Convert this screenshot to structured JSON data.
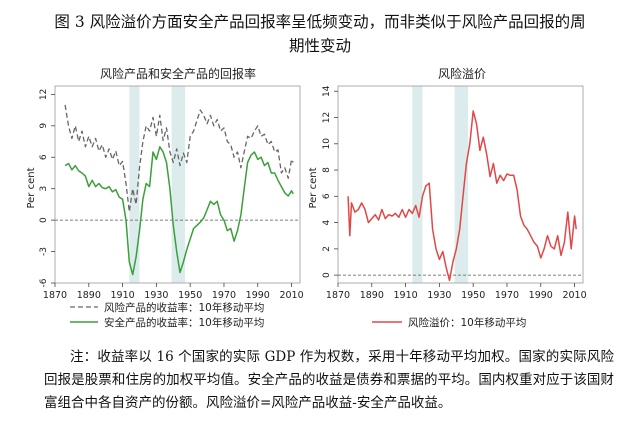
{
  "figure": {
    "title_line1": "图 3 风险溢价方面安全产品回报率呈低频变动，而非类似于风险产品回报的周",
    "title_line2": "期性变动"
  },
  "note": "注：收益率以 16 个国家的实际 GDP 作为权数，采用十年移动平均加权。国家的实际风险回报是股票和住房的加权平均值。安全产品的收益是债券和票据的平均。国内权重对应于该国财富组合中各自资产的份额。风险溢价=风险产品收益-安全产品收益。",
  "colors": {
    "risky": "#666666",
    "safe": "#3aa03a",
    "premium": "#e04848",
    "band": "#dcecec",
    "zero": "#555555"
  },
  "chart_data": [
    {
      "type": "line",
      "title": "风险产品和安全产品的回报率",
      "ylabel": "Per cent",
      "xlim": [
        1870,
        2015
      ],
      "ylim": [
        -6,
        12.8
      ],
      "x_ticks": [
        1870,
        1890,
        1910,
        1930,
        1950,
        1970,
        1990,
        2010
      ],
      "y_ticks": [
        -6,
        -3,
        0,
        3,
        6,
        9,
        12
      ],
      "zero_line": true,
      "shaded_periods": [
        [
          1914,
          1920
        ],
        [
          1939,
          1947
        ]
      ],
      "legend_position": "bottom",
      "series": [
        {
          "name": "风险产品的收益率：10年移动平均",
          "style": "dashed",
          "color": "#666666",
          "points": [
            [
              1876,
              11
            ],
            [
              1878,
              9
            ],
            [
              1880,
              7.8
            ],
            [
              1882,
              9
            ],
            [
              1884,
              7.5
            ],
            [
              1886,
              8.5
            ],
            [
              1888,
              7
            ],
            [
              1890,
              8
            ],
            [
              1892,
              7
            ],
            [
              1894,
              7.8
            ],
            [
              1896,
              6.6
            ],
            [
              1898,
              7.2
            ],
            [
              1900,
              6
            ],
            [
              1902,
              6.8
            ],
            [
              1904,
              5.8
            ],
            [
              1906,
              6.6
            ],
            [
              1908,
              5.2
            ],
            [
              1910,
              5.6
            ],
            [
              1912,
              3.5
            ],
            [
              1914,
              0.8
            ],
            [
              1916,
              3
            ],
            [
              1918,
              1.5
            ],
            [
              1920,
              5
            ],
            [
              1922,
              7.5
            ],
            [
              1924,
              9
            ],
            [
              1926,
              8.5
            ],
            [
              1928,
              9.8
            ],
            [
              1930,
              8
            ],
            [
              1932,
              10
            ],
            [
              1934,
              7.6
            ],
            [
              1936,
              8.8
            ],
            [
              1938,
              6.5
            ],
            [
              1940,
              5.5
            ],
            [
              1942,
              6.8
            ],
            [
              1944,
              5.2
            ],
            [
              1946,
              6.4
            ],
            [
              1948,
              5.5
            ],
            [
              1950,
              8
            ],
            [
              1952,
              8.5
            ],
            [
              1954,
              9.5
            ],
            [
              1956,
              10.5
            ],
            [
              1958,
              10
            ],
            [
              1960,
              9.2
            ],
            [
              1962,
              10
            ],
            [
              1964,
              9
            ],
            [
              1966,
              9.6
            ],
            [
              1968,
              8.5
            ],
            [
              1970,
              8.8
            ],
            [
              1972,
              7.5
            ],
            [
              1974,
              7.2
            ],
            [
              1976,
              6
            ],
            [
              1978,
              6.5
            ],
            [
              1980,
              5
            ],
            [
              1982,
              6.5
            ],
            [
              1984,
              8
            ],
            [
              1986,
              7.8
            ],
            [
              1988,
              8.5
            ],
            [
              1990,
              9
            ],
            [
              1992,
              8
            ],
            [
              1994,
              8.2
            ],
            [
              1996,
              7.2
            ],
            [
              1998,
              7.5
            ],
            [
              2000,
              6.5
            ],
            [
              2002,
              6.7
            ],
            [
              2004,
              4.5
            ],
            [
              2006,
              5
            ],
            [
              2008,
              4
            ],
            [
              2010,
              5.8
            ],
            [
              2011,
              5.5
            ]
          ]
        },
        {
          "name": "安全产品的收益率：10年移动平均",
          "style": "solid",
          "color": "#3aa03a",
          "points": [
            [
              1876,
              5.2
            ],
            [
              1878,
              5.4
            ],
            [
              1880,
              4.8
            ],
            [
              1882,
              5.2
            ],
            [
              1884,
              4.7
            ],
            [
              1886,
              4.5
            ],
            [
              1888,
              4.2
            ],
            [
              1890,
              3.2
            ],
            [
              1892,
              3.8
            ],
            [
              1894,
              3.2
            ],
            [
              1896,
              3.5
            ],
            [
              1898,
              3.1
            ],
            [
              1900,
              3
            ],
            [
              1902,
              3.2
            ],
            [
              1904,
              2.7
            ],
            [
              1906,
              2.9
            ],
            [
              1908,
              2.2
            ],
            [
              1910,
              2
            ],
            [
              1912,
              0
            ],
            [
              1914,
              -4
            ],
            [
              1916,
              -5.2
            ],
            [
              1918,
              -3.5
            ],
            [
              1920,
              -1
            ],
            [
              1922,
              2
            ],
            [
              1924,
              3.5
            ],
            [
              1926,
              3.2
            ],
            [
              1928,
              6.5
            ],
            [
              1930,
              5.8
            ],
            [
              1932,
              7
            ],
            [
              1934,
              6.5
            ],
            [
              1936,
              5.5
            ],
            [
              1938,
              3
            ],
            [
              1940,
              -0.5
            ],
            [
              1942,
              -3
            ],
            [
              1944,
              -5
            ],
            [
              1946,
              -4
            ],
            [
              1948,
              -2.8
            ],
            [
              1950,
              -1.8
            ],
            [
              1952,
              -0.8
            ],
            [
              1954,
              -0.5
            ],
            [
              1956,
              -0.2
            ],
            [
              1958,
              0.2
            ],
            [
              1960,
              1
            ],
            [
              1962,
              1.8
            ],
            [
              1964,
              1.5
            ],
            [
              1966,
              1.8
            ],
            [
              1968,
              0.5
            ],
            [
              1970,
              0
            ],
            [
              1972,
              -1
            ],
            [
              1974,
              -0.8
            ],
            [
              1976,
              -2
            ],
            [
              1978,
              -1
            ],
            [
              1980,
              0.5
            ],
            [
              1982,
              3
            ],
            [
              1984,
              5.5
            ],
            [
              1986,
              6.2
            ],
            [
              1988,
              6.5
            ],
            [
              1990,
              5.8
            ],
            [
              1992,
              6
            ],
            [
              1994,
              5.2
            ],
            [
              1996,
              5.5
            ],
            [
              1998,
              4.5
            ],
            [
              2000,
              4.5
            ],
            [
              2002,
              3.8
            ],
            [
              2004,
              3.2
            ],
            [
              2006,
              2.6
            ],
            [
              2008,
              2.3
            ],
            [
              2010,
              2.8
            ],
            [
              2011,
              2.5
            ]
          ]
        }
      ]
    },
    {
      "type": "line",
      "title": "风险溢价",
      "ylabel": "Per cent",
      "xlim": [
        1870,
        2015
      ],
      "ylim": [
        -0.6,
        14.4
      ],
      "x_ticks": [
        1870,
        1890,
        1910,
        1930,
        1950,
        1970,
        1990,
        2010
      ],
      "y_ticks": [
        0,
        2,
        4,
        6,
        8,
        10,
        12,
        14
      ],
      "zero_line": true,
      "shaded_periods": [
        [
          1914,
          1920
        ],
        [
          1939,
          1947
        ]
      ],
      "legend_position": "bottom",
      "series": [
        {
          "name": "风险溢价：10年移动平均",
          "style": "solid",
          "color": "#e04848",
          "points": [
            [
              1876,
              6
            ],
            [
              1877,
              3
            ],
            [
              1878,
              5.5
            ],
            [
              1880,
              4.8
            ],
            [
              1882,
              5
            ],
            [
              1884,
              5.5
            ],
            [
              1886,
              5
            ],
            [
              1888,
              4
            ],
            [
              1890,
              4.3
            ],
            [
              1892,
              4.6
            ],
            [
              1894,
              4.2
            ],
            [
              1896,
              5
            ],
            [
              1898,
              4.3
            ],
            [
              1900,
              4.6
            ],
            [
              1902,
              4.5
            ],
            [
              1904,
              4.7
            ],
            [
              1906,
              4.4
            ],
            [
              1908,
              5
            ],
            [
              1910,
              4.4
            ],
            [
              1912,
              5
            ],
            [
              1914,
              4.7
            ],
            [
              1916,
              5.3
            ],
            [
              1918,
              4.4
            ],
            [
              1920,
              6
            ],
            [
              1922,
              6.8
            ],
            [
              1924,
              7
            ],
            [
              1926,
              3.5
            ],
            [
              1928,
              2
            ],
            [
              1930,
              1.2
            ],
            [
              1932,
              1.8
            ],
            [
              1934,
              0.6
            ],
            [
              1936,
              -0.4
            ],
            [
              1938,
              1
            ],
            [
              1940,
              2
            ],
            [
              1942,
              3.5
            ],
            [
              1944,
              6
            ],
            [
              1946,
              8.5
            ],
            [
              1948,
              10
            ],
            [
              1950,
              12.5
            ],
            [
              1952,
              11.5
            ],
            [
              1954,
              9.5
            ],
            [
              1956,
              10.5
            ],
            [
              1958,
              9.2
            ],
            [
              1960,
              7.5
            ],
            [
              1962,
              8.5
            ],
            [
              1964,
              7
            ],
            [
              1966,
              7.6
            ],
            [
              1968,
              7.2
            ],
            [
              1970,
              7.7
            ],
            [
              1972,
              7.6
            ],
            [
              1974,
              7.6
            ],
            [
              1976,
              6.5
            ],
            [
              1978,
              4.5
            ],
            [
              1980,
              3.8
            ],
            [
              1982,
              3.5
            ],
            [
              1984,
              3
            ],
            [
              1986,
              2.5
            ],
            [
              1988,
              2.2
            ],
            [
              1990,
              1.3
            ],
            [
              1992,
              2
            ],
            [
              1994,
              3
            ],
            [
              1996,
              2.2
            ],
            [
              1998,
              2
            ],
            [
              2000,
              3
            ],
            [
              2002,
              1.5
            ],
            [
              2004,
              2.5
            ],
            [
              2006,
              4.8
            ],
            [
              2008,
              2
            ],
            [
              2010,
              4.5
            ],
            [
              2011,
              3.5
            ]
          ]
        }
      ]
    }
  ]
}
